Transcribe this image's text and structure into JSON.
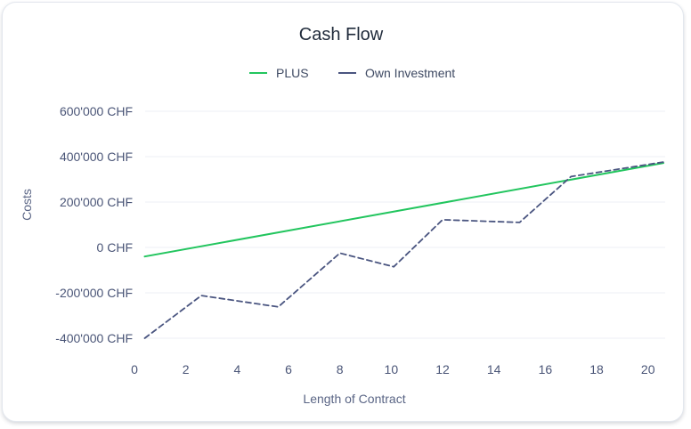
{
  "chart_data": {
    "type": "line",
    "title": "Cash Flow",
    "xlabel": "Length of Contract",
    "ylabel": "Costs",
    "xlim": [
      0,
      20.6
    ],
    "ylim": [
      -400000,
      600000
    ],
    "x_ticks": [
      "0",
      "2",
      "4",
      "6",
      "8",
      "10",
      "12",
      "14",
      "16",
      "18",
      "20"
    ],
    "x_tick_values": [
      0,
      2,
      4,
      6,
      8,
      10,
      12,
      14,
      16,
      18,
      20
    ],
    "y_ticks": [
      "-400'000 CHF",
      "-200'000 CHF",
      "0 CHF",
      "200'000 CHF",
      "400'000 CHF",
      "600'000 CHF"
    ],
    "y_tick_values": [
      -400000,
      -200000,
      0,
      200000,
      400000,
      600000
    ],
    "grid": true,
    "legend_position": "top-center",
    "series": [
      {
        "name": "PLUS",
        "color": "#22c55e",
        "dash": "solid",
        "points": [
          [
            0.4,
            -40000
          ],
          [
            20.6,
            372000
          ]
        ]
      },
      {
        "name": "Own Investment",
        "color": "#4a5580",
        "dash": "dashed",
        "points": [
          [
            0.4,
            -400000
          ],
          [
            2.6,
            -212000
          ],
          [
            5.6,
            -262000
          ],
          [
            8.0,
            -25000
          ],
          [
            10.1,
            -85000
          ],
          [
            12.0,
            122000
          ],
          [
            15.0,
            110000
          ],
          [
            17.0,
            312000
          ],
          [
            20.6,
            376000
          ]
        ]
      }
    ]
  }
}
